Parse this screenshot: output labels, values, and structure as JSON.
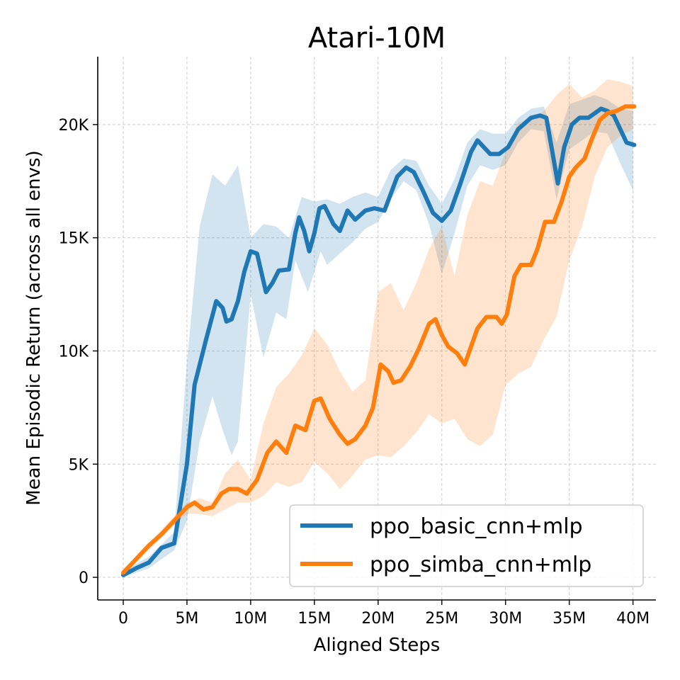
{
  "chart_data": {
    "type": "line",
    "title": "Atari-10M",
    "xlabel": "Aligned Steps",
    "ylabel": "Mean Episodic Return (across all envs)",
    "xlim": [
      -2000000,
      41800000
    ],
    "ylim": [
      -1000,
      23000
    ],
    "x_ticks": [
      0,
      5000000,
      10000000,
      15000000,
      20000000,
      25000000,
      30000000,
      35000000,
      40000000
    ],
    "x_tick_labels": [
      "0",
      "5M",
      "10M",
      "15M",
      "20M",
      "25M",
      "30M",
      "35M",
      "40M"
    ],
    "y_ticks": [
      0,
      5000,
      10000,
      15000,
      20000
    ],
    "y_tick_labels": [
      "0",
      "5K",
      "10K",
      "15K",
      "20K"
    ],
    "grid": true,
    "legend_position": "lower-right",
    "series": [
      {
        "name": "ppo_basic_cnn+mlp",
        "color": "#1f77b4",
        "points": [
          [
            0,
            100
          ],
          [
            1000000,
            400
          ],
          [
            2000000,
            650
          ],
          [
            3000000,
            1300
          ],
          [
            4000000,
            1500
          ],
          [
            5000000,
            5000
          ],
          [
            5600000,
            8500
          ],
          [
            6500000,
            10500
          ],
          [
            7300000,
            12200
          ],
          [
            7800000,
            11900
          ],
          [
            8100000,
            11300
          ],
          [
            8500000,
            11400
          ],
          [
            9000000,
            12200
          ],
          [
            9500000,
            13500
          ],
          [
            10000000,
            14400
          ],
          [
            10500000,
            14300
          ],
          [
            11200000,
            12600
          ],
          [
            11700000,
            13000
          ],
          [
            12200000,
            13550
          ],
          [
            13000000,
            13600
          ],
          [
            13500000,
            15200
          ],
          [
            13800000,
            15900
          ],
          [
            14200000,
            15300
          ],
          [
            14600000,
            14400
          ],
          [
            15000000,
            15200
          ],
          [
            15400000,
            16300
          ],
          [
            15800000,
            16400
          ],
          [
            16500000,
            15600
          ],
          [
            17000000,
            15300
          ],
          [
            17600000,
            16200
          ],
          [
            18200000,
            15800
          ],
          [
            19000000,
            16200
          ],
          [
            19700000,
            16300
          ],
          [
            20500000,
            16200
          ],
          [
            21500000,
            17700
          ],
          [
            22200000,
            18100
          ],
          [
            22800000,
            17900
          ],
          [
            23500000,
            17100
          ],
          [
            24300000,
            16100
          ],
          [
            25000000,
            15750
          ],
          [
            25700000,
            16200
          ],
          [
            26400000,
            17300
          ],
          [
            27300000,
            18800
          ],
          [
            27800000,
            19300
          ],
          [
            28300000,
            19000
          ],
          [
            28800000,
            18700
          ],
          [
            29500000,
            18700
          ],
          [
            30200000,
            19000
          ],
          [
            31000000,
            19800
          ],
          [
            32000000,
            20300
          ],
          [
            32700000,
            20400
          ],
          [
            33200000,
            20300
          ],
          [
            33700000,
            18700
          ],
          [
            34100000,
            17400
          ],
          [
            34600000,
            19000
          ],
          [
            35200000,
            20000
          ],
          [
            35800000,
            20300
          ],
          [
            36500000,
            20300
          ],
          [
            37000000,
            20500
          ],
          [
            37500000,
            20700
          ],
          [
            38000000,
            20600
          ],
          [
            38500000,
            20400
          ],
          [
            39000000,
            19800
          ],
          [
            39500000,
            19200
          ],
          [
            40100000,
            19100
          ]
        ],
        "band_upper": [
          [
            0,
            300
          ],
          [
            2000000,
            900
          ],
          [
            4000000,
            2000
          ],
          [
            5000000,
            9500
          ],
          [
            6000000,
            15500
          ],
          [
            7000000,
            17800
          ],
          [
            8000000,
            17300
          ],
          [
            9000000,
            18200
          ],
          [
            10000000,
            15000
          ],
          [
            11000000,
            15600
          ],
          [
            12000000,
            15500
          ],
          [
            13000000,
            15000
          ],
          [
            14000000,
            16800
          ],
          [
            15000000,
            16600
          ],
          [
            16000000,
            16700
          ],
          [
            17000000,
            16500
          ],
          [
            18000000,
            16800
          ],
          [
            19000000,
            17000
          ],
          [
            20000000,
            16800
          ],
          [
            21000000,
            18000
          ],
          [
            22000000,
            18500
          ],
          [
            23000000,
            18400
          ],
          [
            24000000,
            17300
          ],
          [
            25000000,
            16500
          ],
          [
            26000000,
            17600
          ],
          [
            27000000,
            19200
          ],
          [
            28000000,
            19800
          ],
          [
            29000000,
            19600
          ],
          [
            30000000,
            19600
          ],
          [
            31000000,
            20300
          ],
          [
            32000000,
            20700
          ],
          [
            33000000,
            20800
          ],
          [
            34000000,
            19200
          ],
          [
            35000000,
            20900
          ],
          [
            36000000,
            21100
          ],
          [
            37000000,
            21300
          ],
          [
            38000000,
            21100
          ],
          [
            39000000,
            20700
          ],
          [
            40000000,
            20600
          ]
        ],
        "band_lower": [
          [
            0,
            0
          ],
          [
            2000000,
            400
          ],
          [
            4000000,
            1200
          ],
          [
            5000000,
            2500
          ],
          [
            6000000,
            6000
          ],
          [
            7000000,
            8000
          ],
          [
            7800000,
            6500
          ],
          [
            8500000,
            5400
          ],
          [
            9000000,
            6000
          ],
          [
            10000000,
            12500
          ],
          [
            11000000,
            9700
          ],
          [
            12000000,
            11700
          ],
          [
            12800000,
            11400
          ],
          [
            13500000,
            14000
          ],
          [
            14500000,
            12600
          ],
          [
            15500000,
            14400
          ],
          [
            16000000,
            13800
          ],
          [
            17000000,
            14300
          ],
          [
            18000000,
            14800
          ],
          [
            19000000,
            15400
          ],
          [
            20000000,
            15700
          ],
          [
            21000000,
            16700
          ],
          [
            22000000,
            17500
          ],
          [
            23000000,
            17100
          ],
          [
            24000000,
            15600
          ],
          [
            25000000,
            13400
          ],
          [
            26000000,
            15200
          ],
          [
            27000000,
            17300
          ],
          [
            28000000,
            18200
          ],
          [
            29000000,
            18000
          ],
          [
            30000000,
            18200
          ],
          [
            31000000,
            19200
          ],
          [
            32000000,
            19800
          ],
          [
            33000000,
            19700
          ],
          [
            34000000,
            16700
          ],
          [
            35000000,
            18900
          ],
          [
            36000000,
            19300
          ],
          [
            37000000,
            19700
          ],
          [
            38000000,
            19600
          ],
          [
            39000000,
            18300
          ],
          [
            40000000,
            17100
          ]
        ]
      },
      {
        "name": "ppo_simba_cnn+mlp",
        "color": "#ff7f0e",
        "points": [
          [
            0,
            200
          ],
          [
            1000000,
            800
          ],
          [
            2000000,
            1400
          ],
          [
            3000000,
            1900
          ],
          [
            4000000,
            2500
          ],
          [
            5000000,
            3100
          ],
          [
            5600000,
            3300
          ],
          [
            6300000,
            3000
          ],
          [
            7000000,
            3100
          ],
          [
            7700000,
            3700
          ],
          [
            8300000,
            3900
          ],
          [
            9000000,
            3900
          ],
          [
            9700000,
            3700
          ],
          [
            10500000,
            4300
          ],
          [
            11300000,
            5500
          ],
          [
            12000000,
            6000
          ],
          [
            12800000,
            5500
          ],
          [
            13500000,
            6700
          ],
          [
            14300000,
            6500
          ],
          [
            15000000,
            7800
          ],
          [
            15500000,
            7900
          ],
          [
            16200000,
            7000
          ],
          [
            17000000,
            6300
          ],
          [
            17600000,
            5900
          ],
          [
            18200000,
            6100
          ],
          [
            19000000,
            6700
          ],
          [
            19600000,
            7500
          ],
          [
            20200000,
            9400
          ],
          [
            20800000,
            9100
          ],
          [
            21200000,
            8600
          ],
          [
            21800000,
            8700
          ],
          [
            22500000,
            9300
          ],
          [
            23200000,
            10100
          ],
          [
            24000000,
            11200
          ],
          [
            24500000,
            11400
          ],
          [
            25000000,
            10700
          ],
          [
            25500000,
            10200
          ],
          [
            26200000,
            9900
          ],
          [
            26800000,
            9400
          ],
          [
            27300000,
            10200
          ],
          [
            27800000,
            11000
          ],
          [
            28500000,
            11500
          ],
          [
            29300000,
            11500
          ],
          [
            29700000,
            11200
          ],
          [
            30100000,
            11600
          ],
          [
            30700000,
            13300
          ],
          [
            31200000,
            13800
          ],
          [
            32000000,
            13800
          ],
          [
            32500000,
            14500
          ],
          [
            33100000,
            15700
          ],
          [
            33800000,
            15700
          ],
          [
            34400000,
            16600
          ],
          [
            35000000,
            17700
          ],
          [
            35500000,
            18100
          ],
          [
            36200000,
            18500
          ],
          [
            36800000,
            19400
          ],
          [
            37400000,
            20200
          ],
          [
            38000000,
            20500
          ],
          [
            38700000,
            20600
          ],
          [
            39400000,
            20800
          ],
          [
            40100000,
            20800
          ]
        ],
        "band_upper": [
          [
            0,
            300
          ],
          [
            2000000,
            1500
          ],
          [
            4000000,
            2700
          ],
          [
            5000000,
            3300
          ],
          [
            6000000,
            3500
          ],
          [
            7000000,
            3300
          ],
          [
            8000000,
            4600
          ],
          [
            9000000,
            5200
          ],
          [
            10000000,
            4300
          ],
          [
            11000000,
            6800
          ],
          [
            12000000,
            8400
          ],
          [
            13000000,
            9000
          ],
          [
            14000000,
            9800
          ],
          [
            15000000,
            11000
          ],
          [
            16000000,
            10300
          ],
          [
            17000000,
            9100
          ],
          [
            18000000,
            8200
          ],
          [
            19000000,
            8700
          ],
          [
            20000000,
            12600
          ],
          [
            21000000,
            13000
          ],
          [
            22000000,
            11800
          ],
          [
            23000000,
            13000
          ],
          [
            24000000,
            14500
          ],
          [
            25000000,
            15500
          ],
          [
            26000000,
            13300
          ],
          [
            27000000,
            16000
          ],
          [
            28000000,
            17500
          ],
          [
            29000000,
            17300
          ],
          [
            30000000,
            18800
          ],
          [
            31000000,
            20100
          ],
          [
            32000000,
            20200
          ],
          [
            33000000,
            20600
          ],
          [
            34000000,
            21300
          ],
          [
            35000000,
            21800
          ],
          [
            36000000,
            21200
          ],
          [
            37000000,
            21500
          ],
          [
            38000000,
            22000
          ],
          [
            39000000,
            21900
          ],
          [
            40000000,
            21700
          ]
        ],
        "band_lower": [
          [
            0,
            100
          ],
          [
            2000000,
            1200
          ],
          [
            4000000,
            2300
          ],
          [
            5000000,
            2800
          ],
          [
            6000000,
            2800
          ],
          [
            7000000,
            2700
          ],
          [
            8000000,
            3000
          ],
          [
            9000000,
            3300
          ],
          [
            10000000,
            3300
          ],
          [
            11000000,
            3600
          ],
          [
            12000000,
            4200
          ],
          [
            13000000,
            4000
          ],
          [
            14000000,
            4200
          ],
          [
            15000000,
            5100
          ],
          [
            16000000,
            4600
          ],
          [
            17000000,
            3900
          ],
          [
            18000000,
            4500
          ],
          [
            19000000,
            5200
          ],
          [
            20000000,
            5400
          ],
          [
            21000000,
            5300
          ],
          [
            22000000,
            5800
          ],
          [
            23000000,
            6400
          ],
          [
            24000000,
            7200
          ],
          [
            25000000,
            6800
          ],
          [
            26000000,
            7000
          ],
          [
            27000000,
            6100
          ],
          [
            28000000,
            5800
          ],
          [
            29000000,
            6300
          ],
          [
            30000000,
            8500
          ],
          [
            31000000,
            9000
          ],
          [
            32000000,
            9300
          ],
          [
            33000000,
            10500
          ],
          [
            34000000,
            11500
          ],
          [
            35000000,
            14000
          ],
          [
            36000000,
            15500
          ],
          [
            37000000,
            17700
          ],
          [
            38000000,
            19000
          ],
          [
            39000000,
            19500
          ],
          [
            40000000,
            19800
          ]
        ]
      }
    ]
  }
}
